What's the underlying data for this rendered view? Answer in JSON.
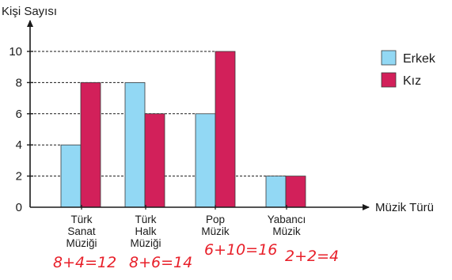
{
  "chart_data": {
    "type": "bar",
    "ylabel": "Kişi Sayısı",
    "xlabel": "Müzik Türü",
    "yticks": [
      0,
      2,
      4,
      6,
      8,
      10
    ],
    "ylim": [
      0,
      10
    ],
    "categories": [
      [
        "Türk",
        "Sanat",
        "Müziği"
      ],
      [
        "Türk",
        "Halk",
        "Müziği"
      ],
      [
        "Pop",
        "Müzik"
      ],
      [
        "Yabancı",
        "Müzik"
      ]
    ],
    "series": [
      {
        "name": "Erkek",
        "color": "#92d8f4",
        "values": [
          4,
          8,
          6,
          2
        ]
      },
      {
        "name": "Kız",
        "color": "#d2205a",
        "values": [
          8,
          6,
          10,
          2
        ]
      }
    ],
    "legend_position": "top-right",
    "dashed_gridlines_at_bar_tops": true
  },
  "annotations": {
    "color": "#e8202a",
    "notes": [
      "8+4=12",
      "8+6=14",
      "6+10=16",
      "2+2=4"
    ]
  }
}
